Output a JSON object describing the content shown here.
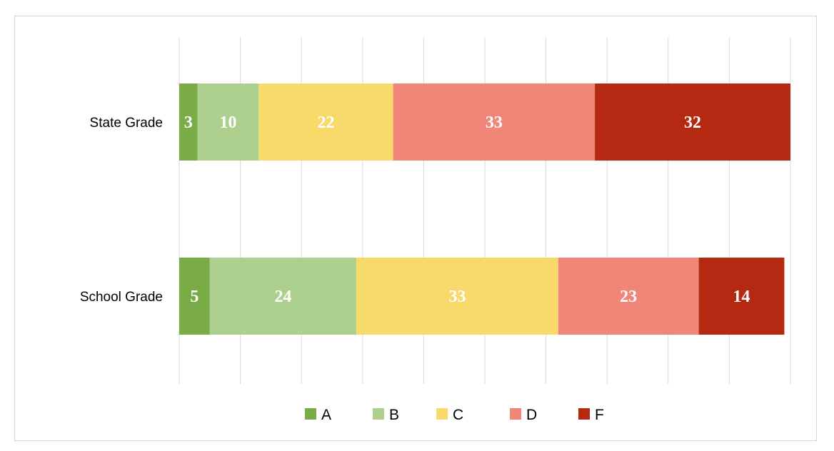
{
  "chart_data": {
    "type": "bar",
    "orientation": "horizontal",
    "stacked": true,
    "categories": [
      "State Grade",
      "School Grade"
    ],
    "series": [
      {
        "name": "A",
        "color": "#7aab47",
        "values": [
          3,
          5
        ]
      },
      {
        "name": "B",
        "color": "#aed08f",
        "values": [
          10,
          24
        ]
      },
      {
        "name": "C",
        "color": "#f8da6a",
        "values": [
          22,
          33
        ]
      },
      {
        "name": "D",
        "color": "#ef8677",
        "values": [
          33,
          23
        ]
      },
      {
        "name": "F",
        "color": "#b52811",
        "values": [
          32,
          14
        ]
      }
    ],
    "xlim": [
      0,
      100
    ],
    "grid": true,
    "legend": "bottom",
    "title": "",
    "xlabel": "",
    "ylabel": ""
  }
}
